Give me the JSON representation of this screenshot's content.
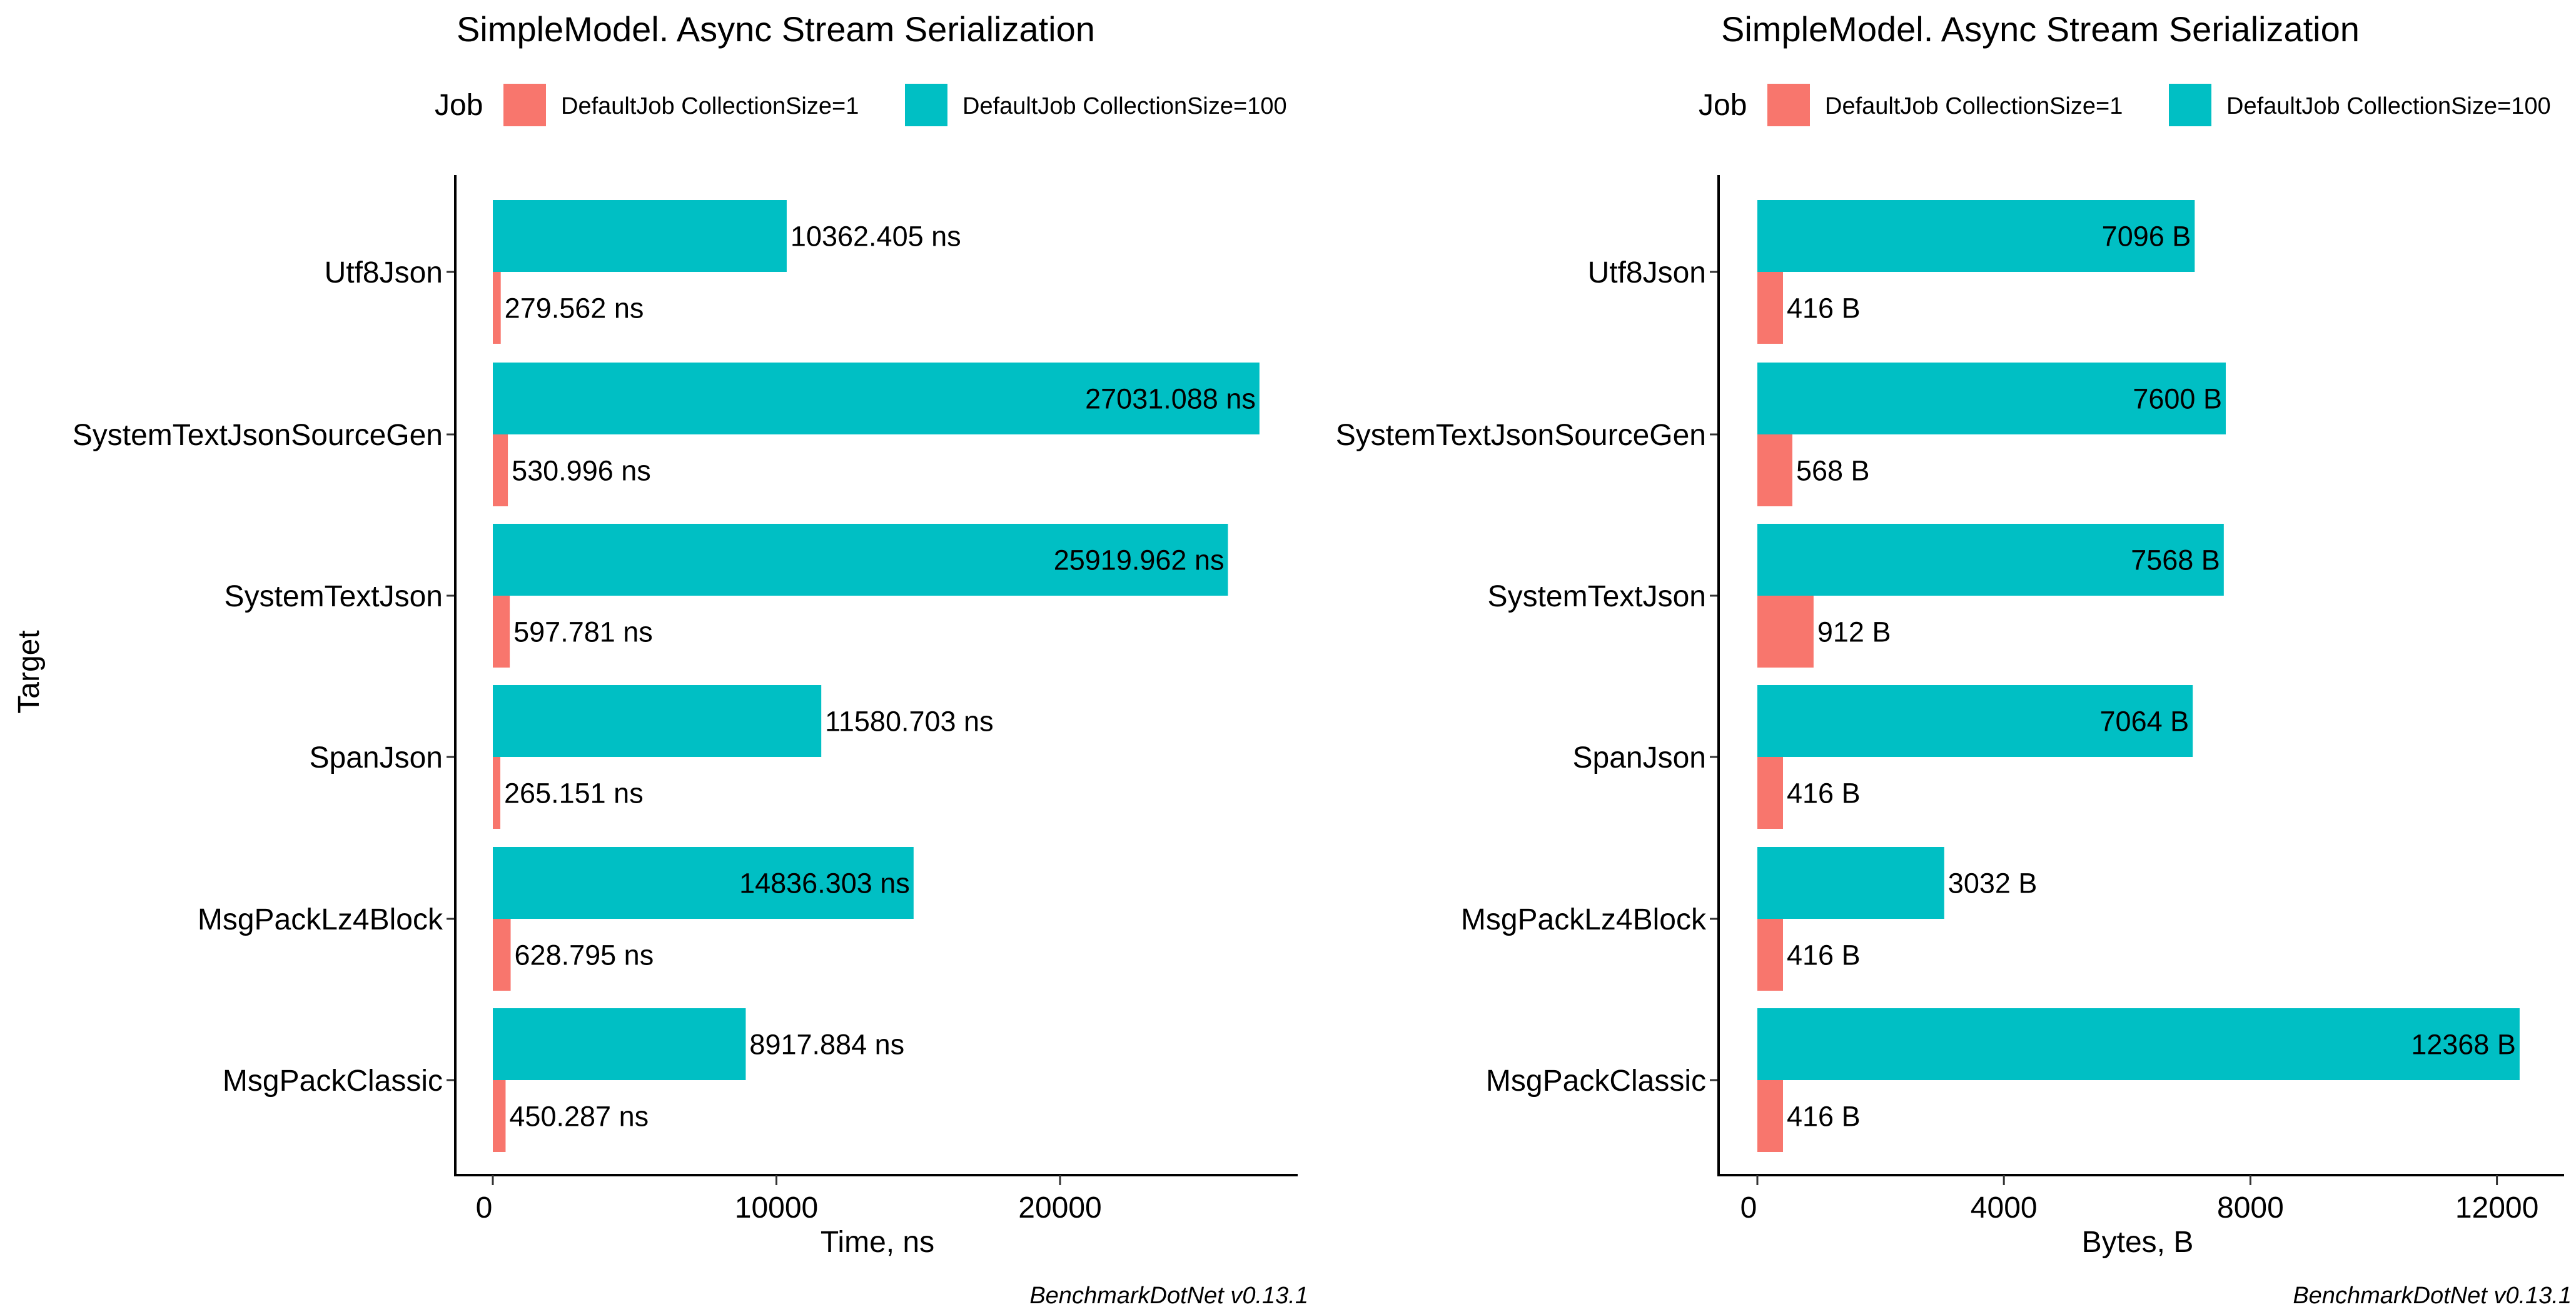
{
  "y_axis_title": "Target",
  "legend_title": "Job",
  "caption": "BenchmarkDotNet v0.13.1",
  "colors": {
    "collection_size_1": "#F8766D",
    "collection_size_100": "#00BFC4"
  },
  "chart_data": [
    {
      "type": "bar",
      "orientation": "horizontal",
      "title": "SimpleModel. Async Stream Serialization",
      "xlabel": "Time, ns",
      "ylabel": "Target",
      "xlim": [
        0,
        28000
      ],
      "xticks": [
        0,
        10000,
        20000
      ],
      "xtick_labels": [
        "0",
        "10000",
        "20000"
      ],
      "grid": false,
      "legend_position": "top",
      "legend_title": "Job",
      "categories": [
        "Utf8Json",
        "SystemTextJsonSourceGen",
        "SystemTextJson",
        "SpanJson",
        "MsgPackLz4Block",
        "MsgPackClassic"
      ],
      "series": [
        {
          "name": "DefaultJob CollectionSize=1",
          "color": "#F8766D",
          "values": [
            279.562,
            530.996,
            597.781,
            265.151,
            628.795,
            450.287
          ],
          "labels": [
            "279.562 ns",
            "530.996 ns",
            "597.781 ns",
            "265.151 ns",
            "628.795 ns",
            "450.287 ns"
          ],
          "label_inside": [
            false,
            false,
            false,
            false,
            false,
            false
          ]
        },
        {
          "name": "DefaultJob CollectionSize=100",
          "color": "#00BFC4",
          "values": [
            10362.405,
            27031.088,
            25919.962,
            11580.703,
            14836.303,
            8917.884
          ],
          "labels": [
            "10362.405 ns",
            "27031.088 ns",
            "25919.962 ns",
            "11580.703 ns",
            "14836.303 ns",
            "8917.884 ns"
          ],
          "label_inside": [
            false,
            true,
            true,
            false,
            true,
            false
          ]
        }
      ],
      "caption": "BenchmarkDotNet v0.13.1"
    },
    {
      "type": "bar",
      "orientation": "horizontal",
      "title": "SimpleModel. Async Stream Serialization",
      "xlabel": "Bytes, B",
      "ylabel": "",
      "xlim": [
        0,
        13000
      ],
      "xticks": [
        0,
        4000,
        8000,
        12000
      ],
      "xtick_labels": [
        "0",
        "4000",
        "8000",
        "12000"
      ],
      "grid": false,
      "legend_position": "top",
      "legend_title": "Job",
      "categories": [
        "Utf8Json",
        "SystemTextJsonSourceGen",
        "SystemTextJson",
        "SpanJson",
        "MsgPackLz4Block",
        "MsgPackClassic"
      ],
      "series": [
        {
          "name": "DefaultJob CollectionSize=1",
          "color": "#F8766D",
          "values": [
            416,
            568,
            912,
            416,
            416,
            416
          ],
          "labels": [
            "416 B",
            "568 B",
            "912 B",
            "416 B",
            "416 B",
            "416 B"
          ],
          "label_inside": [
            false,
            false,
            false,
            false,
            false,
            false
          ]
        },
        {
          "name": "DefaultJob CollectionSize=100",
          "color": "#00BFC4",
          "values": [
            7096,
            7600,
            7568,
            7064,
            3032,
            12368
          ],
          "labels": [
            "7096 B",
            "7600 B",
            "7568 B",
            "7064 B",
            "3032 B",
            "12368 B"
          ],
          "label_inside": [
            true,
            true,
            true,
            true,
            false,
            true
          ]
        }
      ],
      "caption": "BenchmarkDotNet v0.13.1"
    }
  ]
}
